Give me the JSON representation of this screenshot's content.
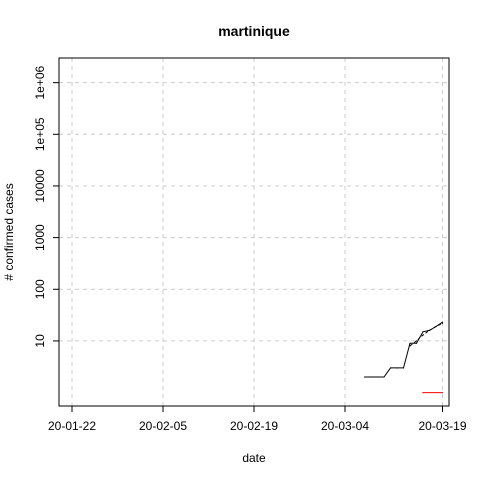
{
  "chart_data": {
    "type": "line",
    "title": "martinique",
    "xlabel": "date",
    "ylabel": "# confirmed cases",
    "x_ticks": [
      "20-01-22",
      "20-02-05",
      "20-02-19",
      "20-03-04",
      "20-03-19"
    ],
    "y_ticks": [
      "10",
      "100",
      "1000",
      "10000",
      "1e+05",
      "1e+06"
    ],
    "y_scale": "log",
    "ylim": [
      0.55,
      3000000
    ],
    "xlim": [
      "2020-01-20",
      "2020-03-20"
    ],
    "grid": true,
    "series": [
      {
        "color": "#000000",
        "style": "solid",
        "x": [
          "2020-03-07",
          "2020-03-08",
          "2020-03-09",
          "2020-03-10",
          "2020-03-11",
          "2020-03-12",
          "2020-03-13",
          "2020-03-14",
          "2020-03-15",
          "2020-03-16",
          "2020-03-17",
          "2020-03-18",
          "2020-03-19"
        ],
        "y": [
          2,
          2,
          2,
          2,
          3,
          3,
          3,
          9,
          9,
          15,
          16,
          19,
          23
        ]
      },
      {
        "color": "#000000",
        "style": "dashed",
        "x": [
          "2020-03-14",
          "2020-03-15",
          "2020-03-16",
          "2020-03-17",
          "2020-03-18",
          "2020-03-19"
        ],
        "y": [
          8,
          10,
          13,
          16,
          19,
          22
        ]
      },
      {
        "color": "#ff0000",
        "style": "solid",
        "x": [
          "2020-03-16",
          "2020-03-19"
        ],
        "y": [
          1,
          1
        ]
      }
    ]
  }
}
